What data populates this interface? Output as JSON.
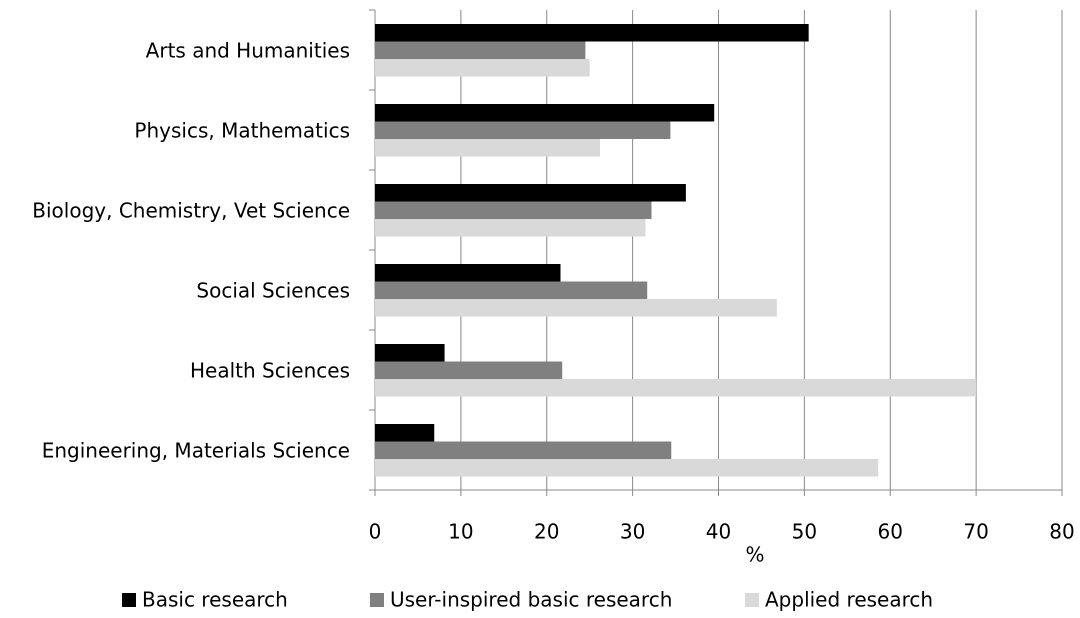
{
  "chart_data": {
    "type": "bar",
    "orientation": "horizontal",
    "categories": [
      "Arts and Humanities",
      "Physics, Mathematics",
      "Biology, Chemistry, Vet Science",
      "Social Sciences",
      "Health Sciences",
      "Engineering, Materials Science"
    ],
    "series": [
      {
        "name": "Basic research",
        "color": "#000000",
        "values": [
          50.5,
          39.5,
          36.2,
          21.6,
          8.1,
          6.9
        ]
      },
      {
        "name": "User-inspired basic research",
        "color": "#808080",
        "values": [
          24.5,
          34.4,
          32.2,
          31.7,
          21.8,
          34.5
        ]
      },
      {
        "name": "Applied research",
        "color": "#d9d9d9",
        "values": [
          25,
          26.2,
          31.5,
          46.8,
          70,
          58.6
        ]
      }
    ],
    "xlabel": "%",
    "xlim": [
      0,
      80
    ],
    "xticks": [
      0,
      10,
      20,
      30,
      40,
      50,
      60,
      70,
      80
    ],
    "grid": true,
    "legend": "bottom"
  }
}
